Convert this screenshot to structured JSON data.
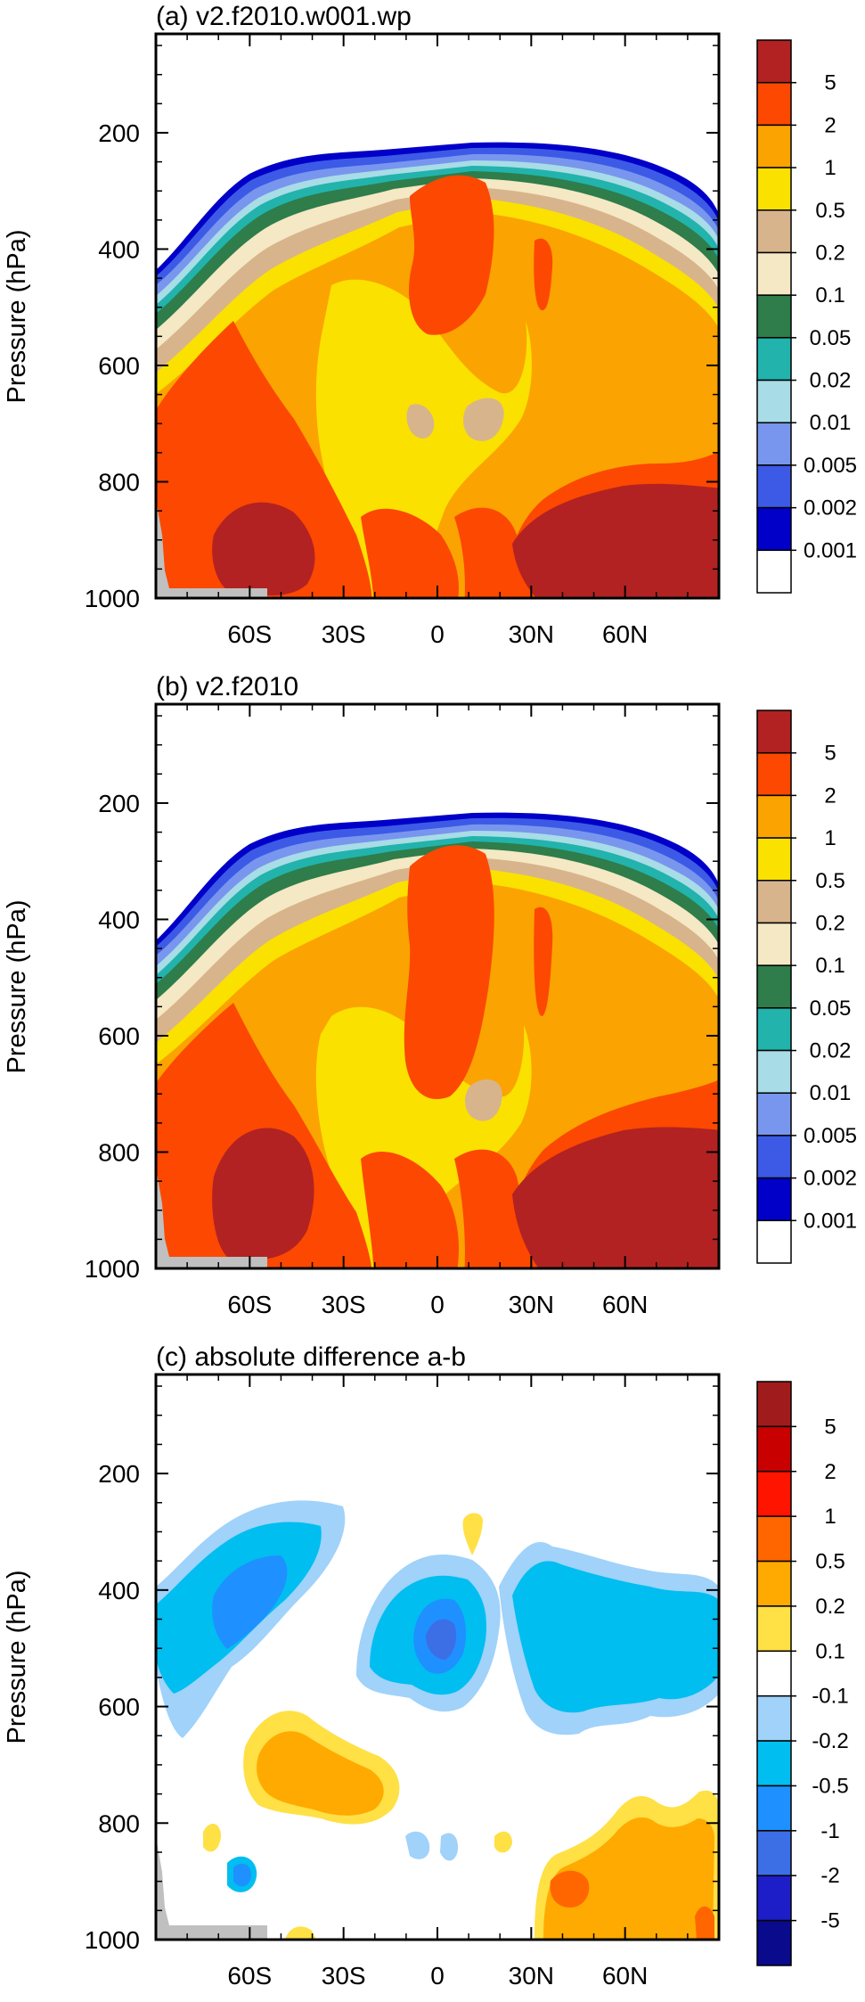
{
  "figure_titles": [
    "(a) v2.f2010.w001.wp",
    "(b) v2.f2010",
    "(c) absolute difference a-b"
  ],
  "colors": {
    "abs_levels": [
      "#ffffff",
      "#0000c8",
      "#3c5ae6",
      "#7896ee",
      "#a8dce6",
      "#22b3ac",
      "#2e7d4a",
      "#f5e8c4",
      "#d8b48c",
      "#fae100",
      "#fba300",
      "#fc4800",
      "#b22222"
    ],
    "diff_levels": [
      "#0a0a8c",
      "#1e1ec8",
      "#3c6ee6",
      "#1e90ff",
      "#00bef0",
      "#a0d2fa",
      "#ffffff",
      "#ffe045",
      "#ffaa00",
      "#ff6600",
      "#ff1400",
      "#c80000",
      "#a01c1c"
    ]
  },
  "chart_data": [
    {
      "type": "heatmap",
      "title": "(a) v2.f2010.w001.wp",
      "ylabel": "Pressure (hPa)",
      "xlabel": "",
      "x_ticks": [
        "60S",
        "30S",
        "0",
        "30N",
        "60N"
      ],
      "x_tick_values": [
        -60,
        -30,
        0,
        30,
        60
      ],
      "xlim": [
        -90,
        90
      ],
      "y_ticks": [
        "200",
        "400",
        "600",
        "800",
        "1000"
      ],
      "y_tick_values": [
        200,
        400,
        600,
        800,
        1000
      ],
      "ylim": [
        1000,
        30
      ],
      "colorbar_labels": [
        "5",
        "2",
        "1",
        "0.5",
        "0.2",
        "0.1",
        "0.05",
        "0.02",
        "0.01",
        "0.005",
        "0.002",
        "0.001"
      ],
      "colorbar_levels": 13
    },
    {
      "type": "heatmap",
      "title": "(b) v2.f2010",
      "ylabel": "Pressure (hPa)",
      "xlabel": "",
      "x_ticks": [
        "60S",
        "30S",
        "0",
        "30N",
        "60N"
      ],
      "x_tick_values": [
        -60,
        -30,
        0,
        30,
        60
      ],
      "xlim": [
        -90,
        90
      ],
      "y_ticks": [
        "200",
        "400",
        "600",
        "800",
        "1000"
      ],
      "y_tick_values": [
        200,
        400,
        600,
        800,
        1000
      ],
      "ylim": [
        1000,
        30
      ],
      "colorbar_labels": [
        "5",
        "2",
        "1",
        "0.5",
        "0.2",
        "0.1",
        "0.05",
        "0.02",
        "0.01",
        "0.005",
        "0.002",
        "0.001"
      ],
      "colorbar_levels": 13
    },
    {
      "type": "heatmap",
      "title": "(c) absolute difference a-b",
      "ylabel": "Pressure (hPa)",
      "xlabel": "",
      "x_ticks": [
        "60S",
        "30S",
        "0",
        "30N",
        "60N"
      ],
      "x_tick_values": [
        -60,
        -30,
        0,
        30,
        60
      ],
      "xlim": [
        -90,
        90
      ],
      "y_ticks": [
        "200",
        "400",
        "600",
        "800",
        "1000"
      ],
      "y_tick_values": [
        200,
        400,
        600,
        800,
        1000
      ],
      "ylim": [
        1000,
        30
      ],
      "colorbar_labels": [
        "5",
        "2",
        "1",
        "0.5",
        "0.2",
        "0.1",
        "-0.1",
        "-0.2",
        "-0.5",
        "-1",
        "-2",
        "-5"
      ],
      "colorbar_levels": 13
    }
  ]
}
